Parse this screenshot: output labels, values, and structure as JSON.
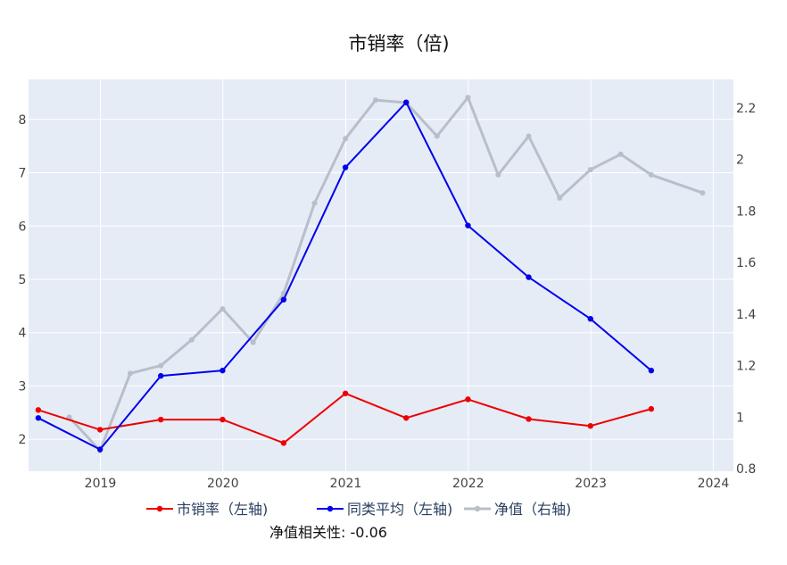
{
  "chart_data": {
    "type": "line",
    "title": "市销率（倍)",
    "x_ticks": [
      "2019",
      "2020",
      "2021",
      "2022",
      "2023",
      "2024"
    ],
    "y_left_ticks": [
      "2",
      "3",
      "4",
      "5",
      "6",
      "7",
      "8"
    ],
    "y_right_ticks": [
      "0.8",
      "1",
      "1.2",
      "1.4",
      "1.6",
      "1.8",
      "2",
      "2.2"
    ],
    "y_left_range": [
      1.4,
      8.75
    ],
    "y_right_range": [
      0.79,
      2.31
    ],
    "x_range": [
      "2018-06-01",
      "2024-03-01"
    ],
    "grid": true,
    "legend_position": "bottom",
    "series": [
      {
        "name": "市销率（左轴)",
        "axis": "left",
        "color": "#ee0000",
        "x": [
          "2018-06-30",
          "2018-12-31",
          "2019-06-30",
          "2019-12-31",
          "2020-06-30",
          "2020-12-31",
          "2021-06-30",
          "2021-12-31",
          "2022-06-30",
          "2022-12-31",
          "2023-06-30"
        ],
        "y": [
          2.55,
          2.18,
          2.37,
          2.37,
          1.93,
          2.86,
          2.4,
          2.75,
          2.38,
          2.25,
          2.57
        ]
      },
      {
        "name": "同类平均（左轴)",
        "axis": "left",
        "color": "#0000ee",
        "x": [
          "2018-06-30",
          "2018-12-31",
          "2019-06-30",
          "2019-12-31",
          "2020-06-30",
          "2020-12-31",
          "2021-06-30",
          "2021-12-31",
          "2022-06-30",
          "2022-12-31",
          "2023-06-30"
        ],
        "y": [
          2.4,
          1.81,
          3.19,
          3.29,
          4.62,
          7.1,
          8.32,
          6.01,
          5.04,
          4.26,
          3.29
        ]
      },
      {
        "name": "净值（右轴)",
        "axis": "right",
        "color": "#b8bfca",
        "x": [
          "2018-09-30",
          "2018-12-31",
          "2019-03-31",
          "2019-06-30",
          "2019-09-30",
          "2019-12-31",
          "2020-03-31",
          "2020-06-30",
          "2020-09-30",
          "2020-12-31",
          "2021-03-31",
          "2021-06-30",
          "2021-09-30",
          "2021-12-31",
          "2022-03-31",
          "2022-06-30",
          "2022-09-30",
          "2022-12-31",
          "2023-03-31",
          "2023-06-30",
          "2023-11-30"
        ],
        "y": [
          1.0,
          0.87,
          1.17,
          1.2,
          1.3,
          1.42,
          1.29,
          1.48,
          1.83,
          2.08,
          2.23,
          2.22,
          2.09,
          2.24,
          1.94,
          2.09,
          1.85,
          1.96,
          2.02,
          1.94,
          1.87
        ]
      }
    ]
  },
  "annotation": "净值相关性: -0.06"
}
